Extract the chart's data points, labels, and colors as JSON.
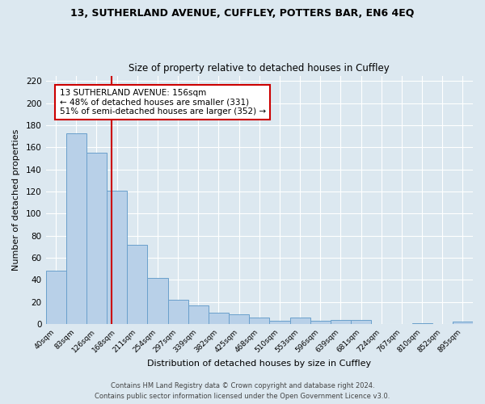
{
  "title": "13, SUTHERLAND AVENUE, CUFFLEY, POTTERS BAR, EN6 4EQ",
  "subtitle": "Size of property relative to detached houses in Cuffley",
  "xlabel": "Distribution of detached houses by size in Cuffley",
  "ylabel": "Number of detached properties",
  "bar_color": "#b8d0e8",
  "bar_edge_color": "#6aa0cc",
  "fig_bg_color": "#dce8f0",
  "ax_bg_color": "#dce8f0",
  "categories": [
    "40sqm",
    "83sqm",
    "126sqm",
    "168sqm",
    "211sqm",
    "254sqm",
    "297sqm",
    "339sqm",
    "382sqm",
    "425sqm",
    "468sqm",
    "510sqm",
    "553sqm",
    "596sqm",
    "639sqm",
    "681sqm",
    "724sqm",
    "767sqm",
    "810sqm",
    "852sqm",
    "895sqm"
  ],
  "values": [
    48,
    173,
    155,
    121,
    72,
    42,
    22,
    17,
    10,
    9,
    6,
    3,
    6,
    3,
    4,
    4,
    0,
    0,
    1,
    0,
    2
  ],
  "ylim": [
    0,
    225
  ],
  "yticks": [
    0,
    20,
    40,
    60,
    80,
    100,
    120,
    140,
    160,
    180,
    200,
    220
  ],
  "vline_color": "#cc0000",
  "vline_x": 2.72,
  "annotation_title": "13 SUTHERLAND AVENUE: 156sqm",
  "annotation_line1": "← 48% of detached houses are smaller (331)",
  "annotation_line2": "51% of semi-detached houses are larger (352) →",
  "annotation_box_color": "#ffffff",
  "annotation_box_edge": "#cc0000",
  "footer1": "Contains HM Land Registry data © Crown copyright and database right 2024.",
  "footer2": "Contains public sector information licensed under the Open Government Licence v3.0."
}
